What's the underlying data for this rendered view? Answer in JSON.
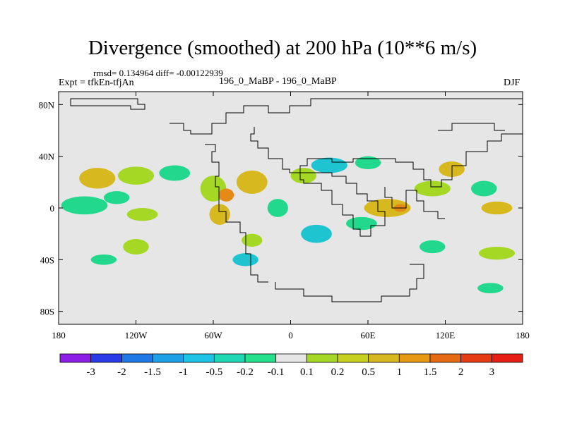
{
  "title": "Divergence (smoothed) at 200 hPa (10**6 m/s)",
  "stats": "rmsd= 0.134964 diff= -0.00122939",
  "expt": "Expt = tfkEn-tfjAn",
  "runs": "196_0_MaBP - 196_0_MaBP",
  "season": "DJF",
  "colors": {
    "background_field": "#e6e6e6",
    "pos_small": "#a5d824",
    "pos_mid": "#d7b81e",
    "pos_large": "#e58a16",
    "neg_small": "#22d88c",
    "neg_mid": "#1ec4d0",
    "coast": "#000000"
  },
  "chart_data": {
    "type": "heatmap",
    "projection": "cylindrical-equidistant",
    "x_range": [
      -180,
      180
    ],
    "y_range": [
      -90,
      90
    ],
    "x_ticks": [
      {
        "value": -180,
        "label": "180"
      },
      {
        "value": -120,
        "label": "120W"
      },
      {
        "value": -60,
        "label": "60W"
      },
      {
        "value": 0,
        "label": "0"
      },
      {
        "value": 60,
        "label": "60E"
      },
      {
        "value": 120,
        "label": "120E"
      },
      {
        "value": 180,
        "label": "180"
      }
    ],
    "y_ticks": [
      {
        "value": 80,
        "label": "80N"
      },
      {
        "value": 40,
        "label": "40N"
      },
      {
        "value": 0,
        "label": "0"
      },
      {
        "value": -40,
        "label": "40S"
      },
      {
        "value": -80,
        "label": "80S"
      }
    ],
    "colorbar": {
      "labels": [
        "-3",
        "-2",
        "-1.5",
        "-1",
        "-0.5",
        "-0.2",
        "-0.1",
        "0.1",
        "0.2",
        "0.5",
        "1",
        "1.5",
        "2",
        "3"
      ],
      "colors": [
        "#8c1ee6",
        "#2a3ce8",
        "#1e78e6",
        "#1ea0e6",
        "#1ec4e6",
        "#1ed8b4",
        "#22e08c",
        "#e6e6e6",
        "#a5d824",
        "#c8d01e",
        "#d7b81e",
        "#e69a14",
        "#e66a14",
        "#e63c14",
        "#e61e14"
      ]
    },
    "regions": [
      {
        "lon": -165,
        "lat": 0,
        "rx": 11,
        "ry": 4,
        "sign": "neg",
        "level": 2
      },
      {
        "lon": -160,
        "lat": 2,
        "rx": 18,
        "ry": 7,
        "sign": "neg",
        "level": 1
      },
      {
        "lon": -150,
        "lat": 23,
        "rx": 14,
        "ry": 8,
        "sign": "pos",
        "level": 2
      },
      {
        "lon": -120,
        "lat": 25,
        "rx": 14,
        "ry": 7,
        "sign": "pos",
        "level": 1
      },
      {
        "lon": -90,
        "lat": 27,
        "rx": 12,
        "ry": 6,
        "sign": "neg",
        "level": 1
      },
      {
        "lon": -135,
        "lat": 8,
        "rx": 10,
        "ry": 5,
        "sign": "neg",
        "level": 1
      },
      {
        "lon": -115,
        "lat": -5,
        "rx": 12,
        "ry": 5,
        "sign": "pos",
        "level": 1
      },
      {
        "lon": -60,
        "lat": 15,
        "rx": 10,
        "ry": 10,
        "sign": "pos",
        "level": 1
      },
      {
        "lon": -55,
        "lat": -5,
        "rx": 8,
        "ry": 8,
        "sign": "pos",
        "level": 2
      },
      {
        "lon": -50,
        "lat": 10,
        "rx": 6,
        "ry": 5,
        "sign": "pos",
        "level": 3
      },
      {
        "lon": -30,
        "lat": 20,
        "rx": 12,
        "ry": 9,
        "sign": "pos",
        "level": 2
      },
      {
        "lon": -10,
        "lat": 0,
        "rx": 8,
        "ry": 7,
        "sign": "neg",
        "level": 1
      },
      {
        "lon": 10,
        "lat": 25,
        "rx": 10,
        "ry": 6,
        "sign": "pos",
        "level": 1
      },
      {
        "lon": 30,
        "lat": 33,
        "rx": 14,
        "ry": 6,
        "sign": "neg",
        "level": 2
      },
      {
        "lon": 60,
        "lat": 35,
        "rx": 10,
        "ry": 5,
        "sign": "neg",
        "level": 1
      },
      {
        "lon": 75,
        "lat": 0,
        "rx": 18,
        "ry": 7,
        "sign": "pos",
        "level": 2
      },
      {
        "lon": 85,
        "lat": 0,
        "rx": 5,
        "ry": 3,
        "sign": "pos",
        "level": 3
      },
      {
        "lon": 55,
        "lat": -12,
        "rx": 12,
        "ry": 5,
        "sign": "neg",
        "level": 1
      },
      {
        "lon": 20,
        "lat": -20,
        "rx": 12,
        "ry": 7,
        "sign": "neg",
        "level": 2
      },
      {
        "lon": 110,
        "lat": 15,
        "rx": 14,
        "ry": 6,
        "sign": "pos",
        "level": 1
      },
      {
        "lon": 125,
        "lat": 30,
        "rx": 10,
        "ry": 6,
        "sign": "pos",
        "level": 2
      },
      {
        "lon": 150,
        "lat": 15,
        "rx": 10,
        "ry": 6,
        "sign": "neg",
        "level": 1
      },
      {
        "lon": 160,
        "lat": 0,
        "rx": 12,
        "ry": 5,
        "sign": "pos",
        "level": 2
      },
      {
        "lon": -120,
        "lat": -30,
        "rx": 10,
        "ry": 6,
        "sign": "pos",
        "level": 1
      },
      {
        "lon": -145,
        "lat": -40,
        "rx": 10,
        "ry": 4,
        "sign": "neg",
        "level": 1
      },
      {
        "lon": -35,
        "lat": -40,
        "rx": 10,
        "ry": 5,
        "sign": "neg",
        "level": 2
      },
      {
        "lon": 110,
        "lat": -30,
        "rx": 10,
        "ry": 5,
        "sign": "neg",
        "level": 1
      },
      {
        "lon": 160,
        "lat": -35,
        "rx": 14,
        "ry": 5,
        "sign": "pos",
        "level": 1
      },
      {
        "lon": 155,
        "lat": -62,
        "rx": 10,
        "ry": 4,
        "sign": "neg",
        "level": 1
      },
      {
        "lon": -30,
        "lat": -25,
        "rx": 8,
        "ry": 5,
        "sign": "pos",
        "level": 1
      }
    ]
  }
}
